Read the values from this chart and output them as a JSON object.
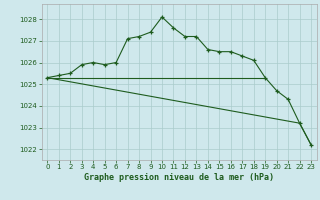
{
  "title": "Graphe pression niveau de la mer (hPa)",
  "background_color": "#cfe8ec",
  "grid_color": "#aacccc",
  "line_color": "#1e5c1e",
  "xlim": [
    -0.5,
    23.5
  ],
  "ylim": [
    1021.5,
    1028.7
  ],
  "yticks": [
    1022,
    1023,
    1024,
    1025,
    1026,
    1027,
    1028
  ],
  "xticks": [
    0,
    1,
    2,
    3,
    4,
    5,
    6,
    7,
    8,
    9,
    10,
    11,
    12,
    13,
    14,
    15,
    16,
    17,
    18,
    19,
    20,
    21,
    22,
    23
  ],
  "main_series": {
    "x": [
      0,
      1,
      2,
      3,
      4,
      5,
      6,
      7,
      8,
      9,
      10,
      11,
      12,
      13,
      14,
      15,
      16,
      17,
      18,
      19,
      20,
      21,
      22,
      23
    ],
    "y": [
      1025.3,
      1025.4,
      1025.5,
      1025.9,
      1026.0,
      1025.9,
      1026.0,
      1027.1,
      1027.2,
      1027.4,
      1028.1,
      1027.6,
      1027.2,
      1027.2,
      1026.6,
      1026.5,
      1026.5,
      1026.3,
      1026.1,
      1025.3,
      1024.7,
      1024.3,
      1023.2,
      1022.2
    ]
  },
  "flat_line": {
    "x": [
      0,
      19
    ],
    "y": [
      1025.3,
      1025.3
    ]
  },
  "diagonal_line": {
    "x": [
      0,
      22,
      23
    ],
    "y": [
      1025.3,
      1023.2,
      1022.2
    ]
  },
  "title_color": "#1e5c1e",
  "tick_fontsize": 5,
  "title_fontsize": 6
}
